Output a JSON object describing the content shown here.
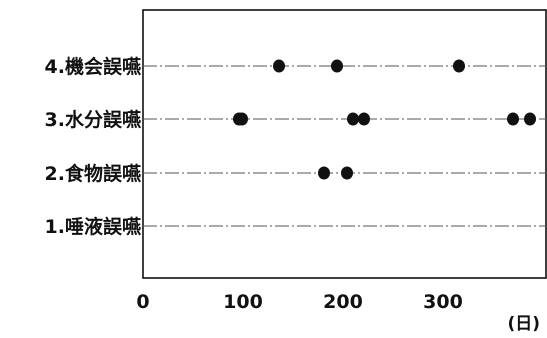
{
  "chart_data": {
    "type": "scatter",
    "title": "",
    "xlabel": "(日)",
    "ylabel": "",
    "xlim": [
      0,
      400
    ],
    "x_ticks": [
      "0",
      "100",
      "200",
      "300"
    ],
    "x_tick_values": [
      0,
      100,
      200,
      300
    ],
    "categories": [
      "1.唾液誤嚥",
      "2.食物誤嚥",
      "3.水分誤嚥",
      "4.機会誤嚥"
    ],
    "grid": "horizontal dash-dot lines per category",
    "legend": "none",
    "marker_color": "#111111",
    "series": [
      {
        "category": "1.唾液誤嚥",
        "x": []
      },
      {
        "category": "2.食物誤嚥",
        "x": [
          181,
          204
        ]
      },
      {
        "category": "3.水分誤嚥",
        "x": [
          96,
          99,
          210,
          221,
          370,
          387
        ]
      },
      {
        "category": "4.機会誤嚥",
        "x": [
          136,
          194,
          316
        ]
      }
    ]
  }
}
